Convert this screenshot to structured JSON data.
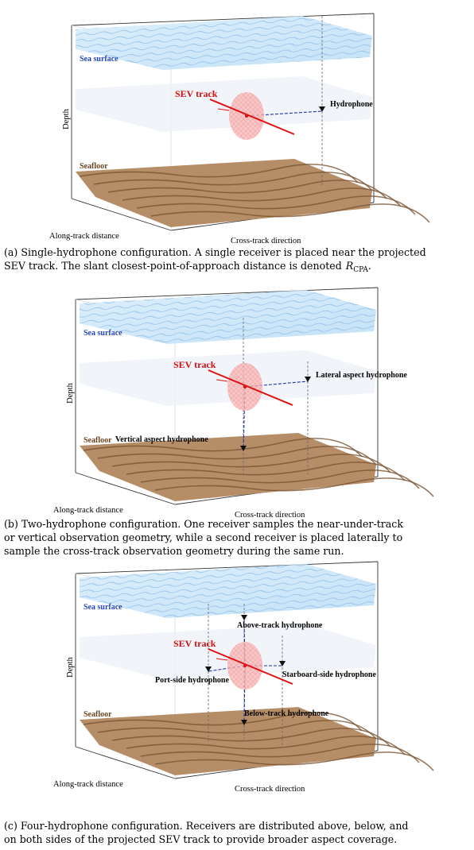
{
  "panels": [
    {
      "labels": {
        "sea_surface": "Sea surface",
        "sev_track": "SEV track",
        "seafloor": "Seafloor",
        "depth": "Depth",
        "along_track": "Along-track distance",
        "cross_track": "Cross-track direction"
      },
      "hydrophones": [
        "Hydrophone"
      ],
      "caption_lines": [
        "(a) Single-hydrophone configuration. A single receiver is placed near the projected",
        "SEV track. The slant closest-point-of-approach distance is denoted"
      ],
      "caption_symbol": "R",
      "caption_subscript": "CPA",
      "caption_end": "."
    },
    {
      "labels": {
        "sea_surface": "Sea surface",
        "sev_track": "SEV track",
        "seafloor": "Seafloor",
        "depth": "Depth",
        "along_track": "Along-track distance",
        "cross_track": "Cross-track direction"
      },
      "hydrophones": [
        "Lateral aspect hydrophone",
        "Vertical aspect hydrophone"
      ],
      "caption_lines": [
        "(b) Two-hydrophone configuration. One receiver samples the near-under-track",
        "or vertical observation geometry, while a second receiver is placed laterally to",
        "sample the cross-track observation geometry during the same run."
      ]
    },
    {
      "labels": {
        "sea_surface": "Sea surface",
        "sev_track": "SEV track",
        "seafloor": "Seafloor",
        "depth": "Depth",
        "along_track": "Along-track distance",
        "cross_track": "Cross-track direction"
      },
      "hydrophones": [
        "Above-track hydrophone",
        "Port-side hydrophone",
        "Starboard-side hydrophone",
        "Below-track hydrophone"
      ],
      "caption_lines": [
        "(c) Four-hydrophone configuration. Receivers are distributed above, below, and",
        "on both sides of the projected SEV track to provide broader aspect coverage."
      ]
    }
  ]
}
